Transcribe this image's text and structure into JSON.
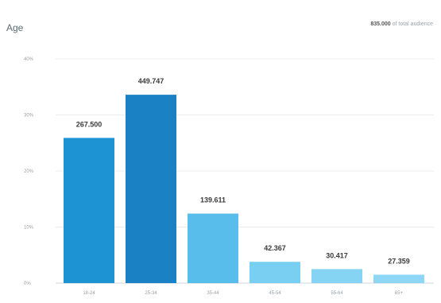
{
  "header": {
    "title": "Age",
    "total_number": "835.000",
    "total_suffix": "of total audience"
  },
  "chart_data": {
    "type": "bar",
    "title": "Age",
    "categories": [
      "18-24",
      "25-34",
      "35-44",
      "45-54",
      "55-64",
      "65+"
    ],
    "values": [
      267.5,
      449.747,
      139.611,
      42.367,
      30.417,
      27.359
    ],
    "value_labels": [
      "267.500",
      "449.747",
      "139.611",
      "42.367",
      "30.417",
      "27.359"
    ],
    "percent_values": [
      25.9,
      33.6,
      12.4,
      3.8,
      2.5,
      1.5
    ],
    "ylim": [
      0,
      40
    ],
    "y_ticks": [
      0,
      10,
      20,
      30,
      40
    ],
    "y_tick_labels": [
      "0%",
      "10%",
      "20%",
      "30%",
      "40%"
    ],
    "xlabel": "",
    "ylabel": "",
    "grid": true,
    "colors": [
      "#1e93d3",
      "#1a82c4",
      "#58bdea",
      "#78cff2",
      "#85d4f4",
      "#8dd7f5"
    ]
  }
}
